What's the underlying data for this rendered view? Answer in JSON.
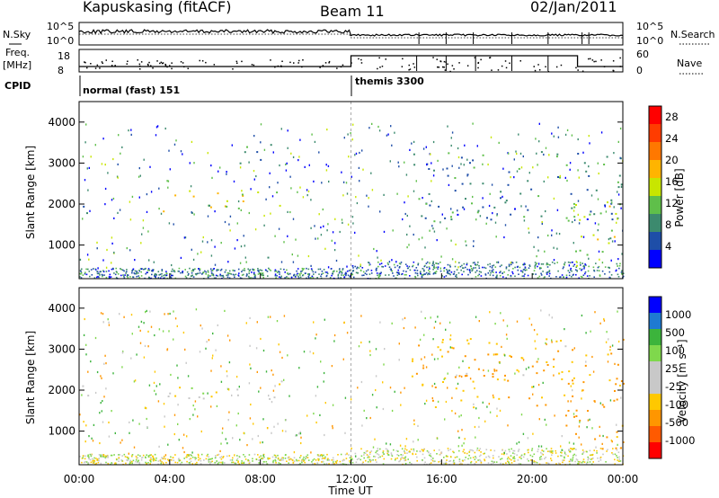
{
  "header": {
    "station": "Kapuskasing (fitACF)",
    "beam": "Beam 11",
    "date": "02/Jan/2011"
  },
  "summary_panels": {
    "nsky_label": "N.Sky",
    "nsearch_label": "N.Search",
    "freq_label": "Freq.",
    "freq_unit": "[MHz]",
    "nave_label": "Nave",
    "cpid_label": "CPID",
    "noise_ticks_left": [
      "10^5",
      "10^0"
    ],
    "noise_ticks_right": [
      "10^5",
      "10^0"
    ],
    "freq_ticks": [
      "18",
      "8"
    ],
    "nave_ticks": [
      "60",
      "0"
    ],
    "cpid_modes": [
      {
        "name": "normal (fast) 151",
        "start_hour": 0,
        "end_hour": 12
      },
      {
        "name": "themis 3300",
        "start_hour": 12,
        "end_hour": 24
      }
    ]
  },
  "colors": {
    "power_scale": [
      "#0000ff",
      "#1e4ea8",
      "#3c8a6e",
      "#5fbf4a",
      "#c8e600",
      "#ffb400",
      "#ff7800",
      "#ff3c00",
      "#ff0000"
    ],
    "velocity_scale": [
      "#ff0000",
      "#ff5a00",
      "#ff9600",
      "#ffc800",
      "#c8c8c8",
      "#c8c8c8",
      "#7fd84c",
      "#3cb43c",
      "#1e7ad2",
      "#0000ff"
    ]
  },
  "chart_data": [
    {
      "type": "heatmap",
      "panel": "power",
      "x_unit": "hours UT",
      "xlim": [
        0,
        24
      ],
      "ylim": [
        180,
        4500
      ],
      "ylabel": "Slant Range [km]",
      "yticks": [
        "1000",
        "2000",
        "3000",
        "4000"
      ],
      "colorbar": {
        "label": "Power [dB]",
        "ticks": [
          "4",
          "8",
          "12",
          "16",
          "20",
          "24",
          "28"
        ],
        "range": [
          0,
          30
        ]
      },
      "echo_regions": [
        {
          "t0": 0.0,
          "t1": 1.1,
          "r0": 1800,
          "r1": 2150,
          "value": 8
        },
        {
          "t0": 3.6,
          "t1": 9.2,
          "r0": 1750,
          "r1": 2350,
          "value": 14
        },
        {
          "t0": 7.0,
          "t1": 8.8,
          "r0": 2900,
          "r1": 3500,
          "value": 8
        },
        {
          "t0": 7.5,
          "t1": 8.6,
          "r0": 700,
          "r1": 850,
          "value": 6
        },
        {
          "t0": 14.6,
          "t1": 24.0,
          "r0": 1600,
          "r1": 3300,
          "value": 8
        },
        {
          "t0": 21.2,
          "t1": 24.0,
          "r0": 500,
          "r1": 2100,
          "value": 14
        }
      ]
    },
    {
      "type": "heatmap",
      "panel": "velocity",
      "x_unit": "hours UT",
      "xlim": [
        0,
        24
      ],
      "ylim": [
        180,
        4500
      ],
      "ylabel": "Slant Range [km]",
      "xlabel": "Time UT",
      "xticks": [
        "00:00",
        "04:00",
        "08:00",
        "12:00",
        "16:00",
        "20:00",
        "00:00"
      ],
      "yticks": [
        "1000",
        "2000",
        "3000",
        "4000"
      ],
      "colorbar": {
        "label": "Velocity [m s⁻¹]",
        "ticks": [
          "1000",
          "500",
          "100",
          "25",
          "-25",
          "-100",
          "-500",
          "-1000"
        ]
      },
      "echo_regions": [
        {
          "t0": 0.0,
          "t1": 1.1,
          "r0": 1800,
          "r1": 2150,
          "value": 0
        },
        {
          "t0": 3.6,
          "t1": 9.2,
          "r0": 1750,
          "r1": 2350,
          "value": 0
        },
        {
          "t0": 14.6,
          "t1": 24.0,
          "r0": 1600,
          "r1": 3300,
          "value": -80
        },
        {
          "t0": 16.0,
          "t1": 21.0,
          "r0": 2300,
          "r1": 2900,
          "value": -200
        },
        {
          "t0": 21.2,
          "t1": 24.0,
          "r0": 500,
          "r1": 2100,
          "value": -150
        }
      ]
    }
  ]
}
